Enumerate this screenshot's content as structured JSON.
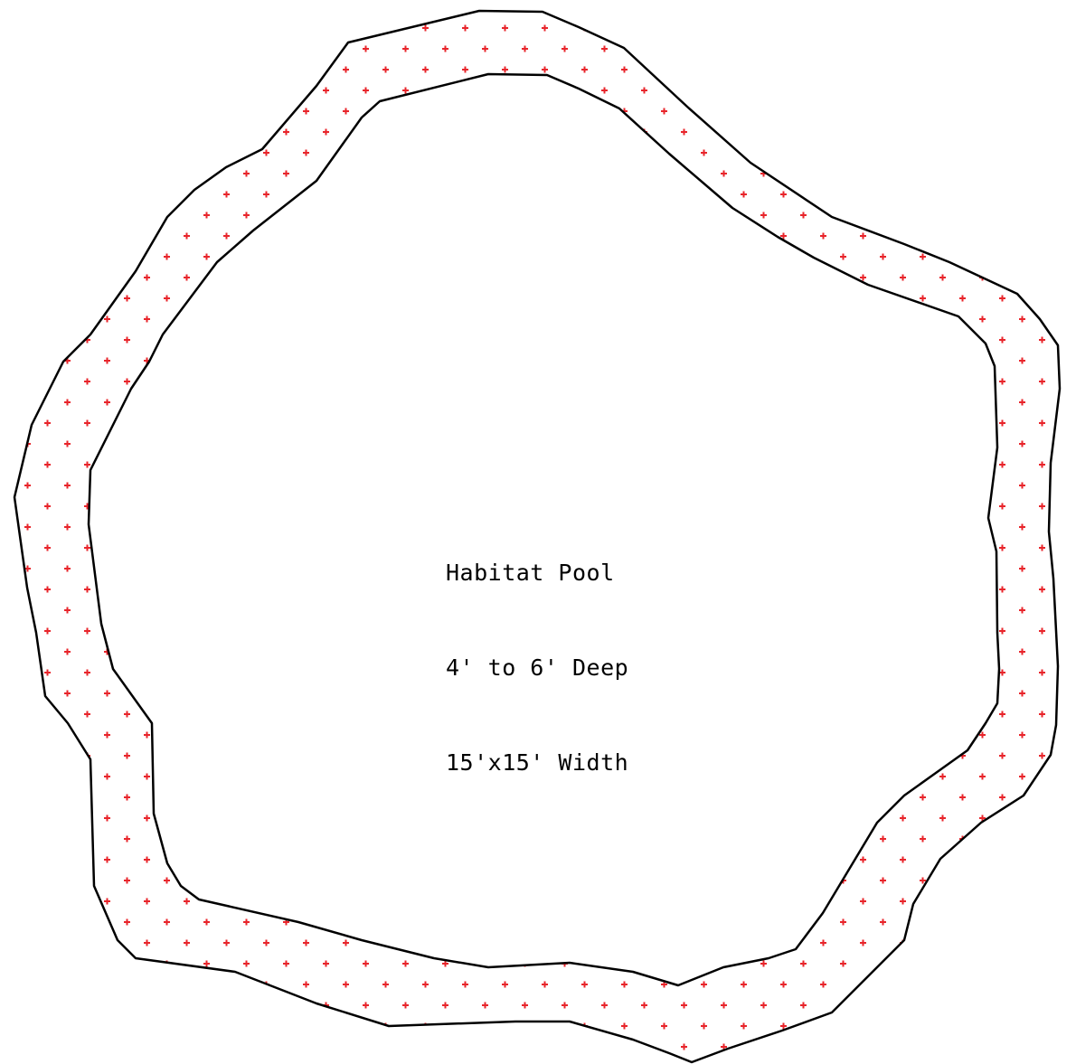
{
  "label": {
    "line1": "Habitat Pool",
    "line2": "4' to 6' Deep",
    "line3": "15'x15' Width"
  },
  "colors": {
    "outline": "#000000",
    "hatch_mark": "#e8252b",
    "background": "#ffffff"
  },
  "hatch_pattern": "red-plus-dots"
}
